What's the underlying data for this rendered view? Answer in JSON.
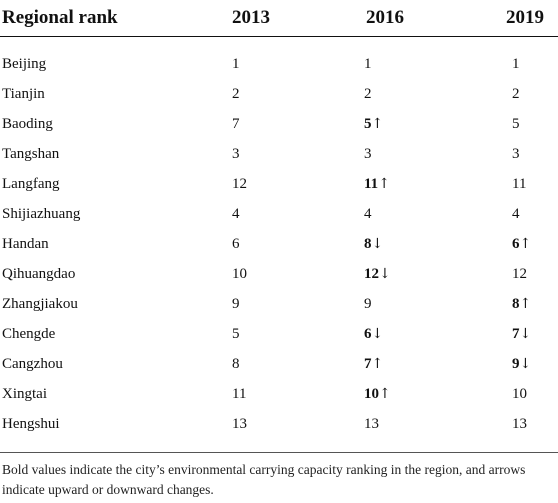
{
  "table": {
    "headers": [
      "Regional rank",
      "2013",
      "2016",
      "2019"
    ],
    "rows": [
      {
        "city": "Beijing",
        "r2013": "1",
        "r2016": {
          "value": "1",
          "bold": false,
          "arrow": ""
        },
        "r2019": {
          "value": "1",
          "bold": false,
          "arrow": ""
        }
      },
      {
        "city": "Tianjin",
        "r2013": "2",
        "r2016": {
          "value": "2",
          "bold": false,
          "arrow": ""
        },
        "r2019": {
          "value": "2",
          "bold": false,
          "arrow": ""
        }
      },
      {
        "city": "Baoding",
        "r2013": "7",
        "r2016": {
          "value": "5",
          "bold": true,
          "arrow": "↑"
        },
        "r2019": {
          "value": "5",
          "bold": false,
          "arrow": ""
        }
      },
      {
        "city": "Tangshan",
        "r2013": "3",
        "r2016": {
          "value": "3",
          "bold": false,
          "arrow": ""
        },
        "r2019": {
          "value": "3",
          "bold": false,
          "arrow": ""
        }
      },
      {
        "city": "Langfang",
        "r2013": "12",
        "r2016": {
          "value": "11",
          "bold": true,
          "arrow": "↑"
        },
        "r2019": {
          "value": "11",
          "bold": false,
          "arrow": ""
        }
      },
      {
        "city": "Shijiazhuang",
        "r2013": "4",
        "r2016": {
          "value": "4",
          "bold": false,
          "arrow": ""
        },
        "r2019": {
          "value": "4",
          "bold": false,
          "arrow": ""
        }
      },
      {
        "city": "Handan",
        "r2013": "6",
        "r2016": {
          "value": "8",
          "bold": true,
          "arrow": "↓"
        },
        "r2019": {
          "value": "6",
          "bold": true,
          "arrow": "↑"
        }
      },
      {
        "city": "Qihuangdao",
        "r2013": "10",
        "r2016": {
          "value": "12",
          "bold": true,
          "arrow": "↓"
        },
        "r2019": {
          "value": "12",
          "bold": false,
          "arrow": ""
        }
      },
      {
        "city": "Zhangjiakou",
        "r2013": "9",
        "r2016": {
          "value": "9",
          "bold": false,
          "arrow": ""
        },
        "r2019": {
          "value": "8",
          "bold": true,
          "arrow": "↑"
        }
      },
      {
        "city": "Chengde",
        "r2013": "5",
        "r2016": {
          "value": "6",
          "bold": true,
          "arrow": "↓"
        },
        "r2019": {
          "value": "7",
          "bold": true,
          "arrow": "↓"
        }
      },
      {
        "city": "Cangzhou",
        "r2013": "8",
        "r2016": {
          "value": "7",
          "bold": true,
          "arrow": "↑"
        },
        "r2019": {
          "value": "9",
          "bold": true,
          "arrow": "↓"
        }
      },
      {
        "city": "Xingtai",
        "r2013": "11",
        "r2016": {
          "value": "10",
          "bold": true,
          "arrow": "↑"
        },
        "r2019": {
          "value": "10",
          "bold": false,
          "arrow": ""
        }
      },
      {
        "city": "Hengshui",
        "r2013": "13",
        "r2016": {
          "value": "13",
          "bold": false,
          "arrow": ""
        },
        "r2019": {
          "value": "13",
          "bold": false,
          "arrow": ""
        }
      }
    ]
  },
  "footnote": "Bold values indicate the city’s environmental carrying capacity ranking in the region, and arrows indicate upward or downward changes."
}
